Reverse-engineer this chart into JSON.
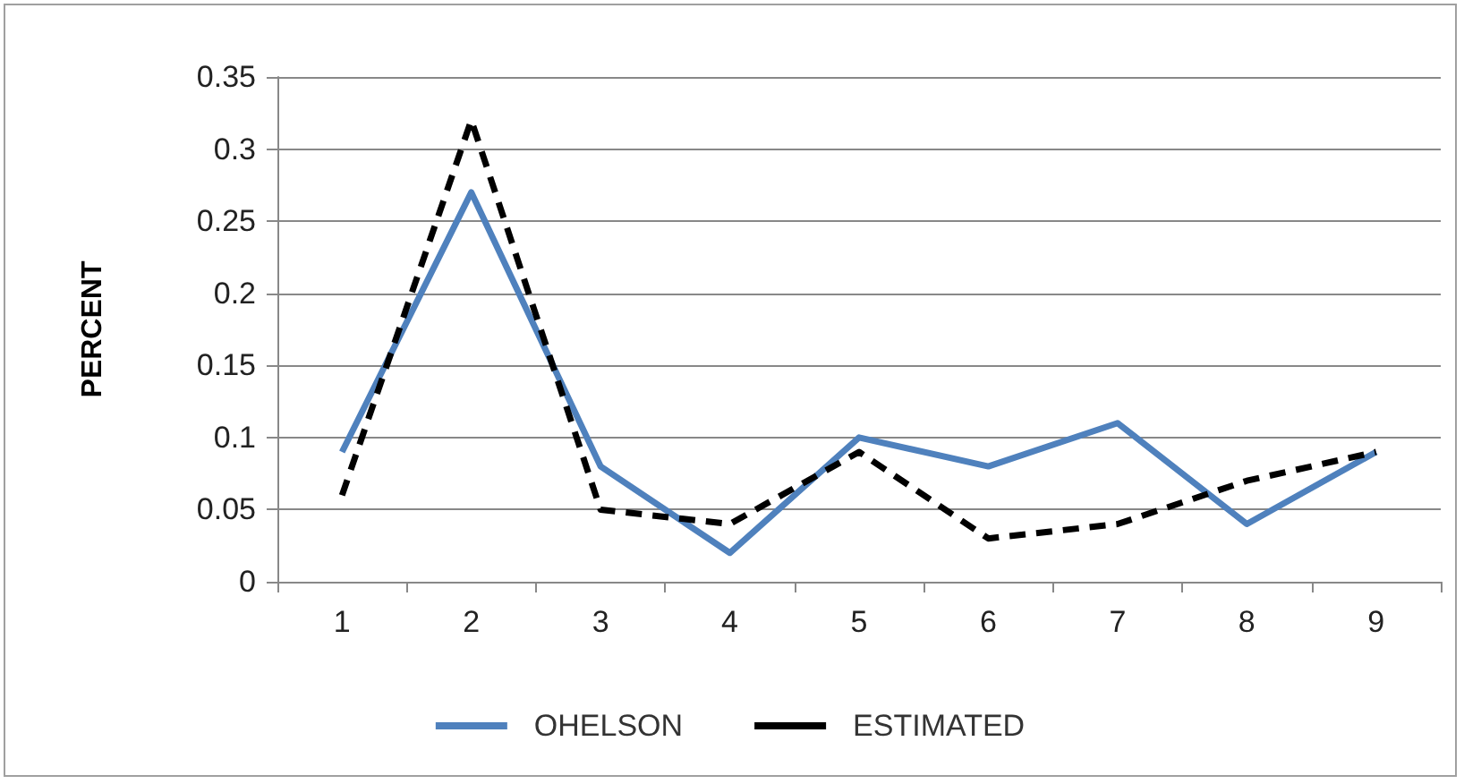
{
  "chart_data": {
    "type": "line",
    "ylabel": "PERCENT",
    "categories": [
      "1",
      "2",
      "3",
      "4",
      "5",
      "6",
      "7",
      "8",
      "9"
    ],
    "series": [
      {
        "name": "OHELSON",
        "color": "#4f81bd",
        "line_style": "solid",
        "values": [
          0.09,
          0.27,
          0.08,
          0.02,
          0.1,
          0.08,
          0.11,
          0.04,
          0.09
        ]
      },
      {
        "name": "ESTIMATED",
        "color": "#000000",
        "line_style": "dashed",
        "values": [
          0.06,
          0.32,
          0.05,
          0.04,
          0.09,
          0.03,
          0.04,
          0.07,
          0.09
        ]
      }
    ],
    "ylim": [
      0,
      0.35
    ],
    "yticks": [
      0,
      0.05,
      0.1,
      0.15,
      0.2,
      0.25,
      0.3,
      0.35
    ],
    "grid": "y",
    "legend": "bottom",
    "marker": "none"
  }
}
